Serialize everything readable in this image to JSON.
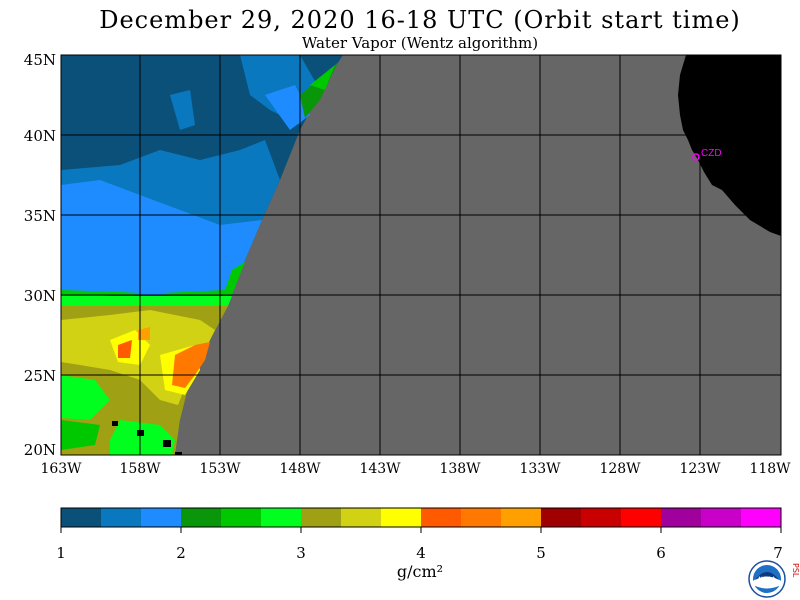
{
  "title": "December 29, 2020  16-18 UTC  (Orbit start time)",
  "subtitle": "Water Vapor (Wentz algorithm)",
  "map": {
    "lat_labels": [
      "45N",
      "40N",
      "35N",
      "30N",
      "25N",
      "20N"
    ],
    "lon_labels": [
      "163W",
      "158W",
      "153W",
      "148W",
      "143W",
      "138W",
      "133W",
      "128W",
      "123W",
      "118W"
    ],
    "station_label": "CZD",
    "nodata_color": "#666666",
    "land_color": "#000000",
    "station_color": "#ff00ff"
  },
  "colorbar": {
    "ticks": [
      "1",
      "2",
      "3",
      "4",
      "5",
      "6",
      "7"
    ],
    "units": "g/cm²",
    "colors": [
      "#0a5078",
      "#0a78be",
      "#1e8cff",
      "#0a960a",
      "#00c800",
      "#00ff1e",
      "#a0a014",
      "#d2d214",
      "#ffff00",
      "#ff5a00",
      "#ff7800",
      "#ffa000",
      "#a00000",
      "#c80000",
      "#ff0000",
      "#a0009b",
      "#c800c8",
      "#ff00ff"
    ]
  },
  "logo": {
    "text": "NOAA",
    "side_text": "PSL"
  }
}
